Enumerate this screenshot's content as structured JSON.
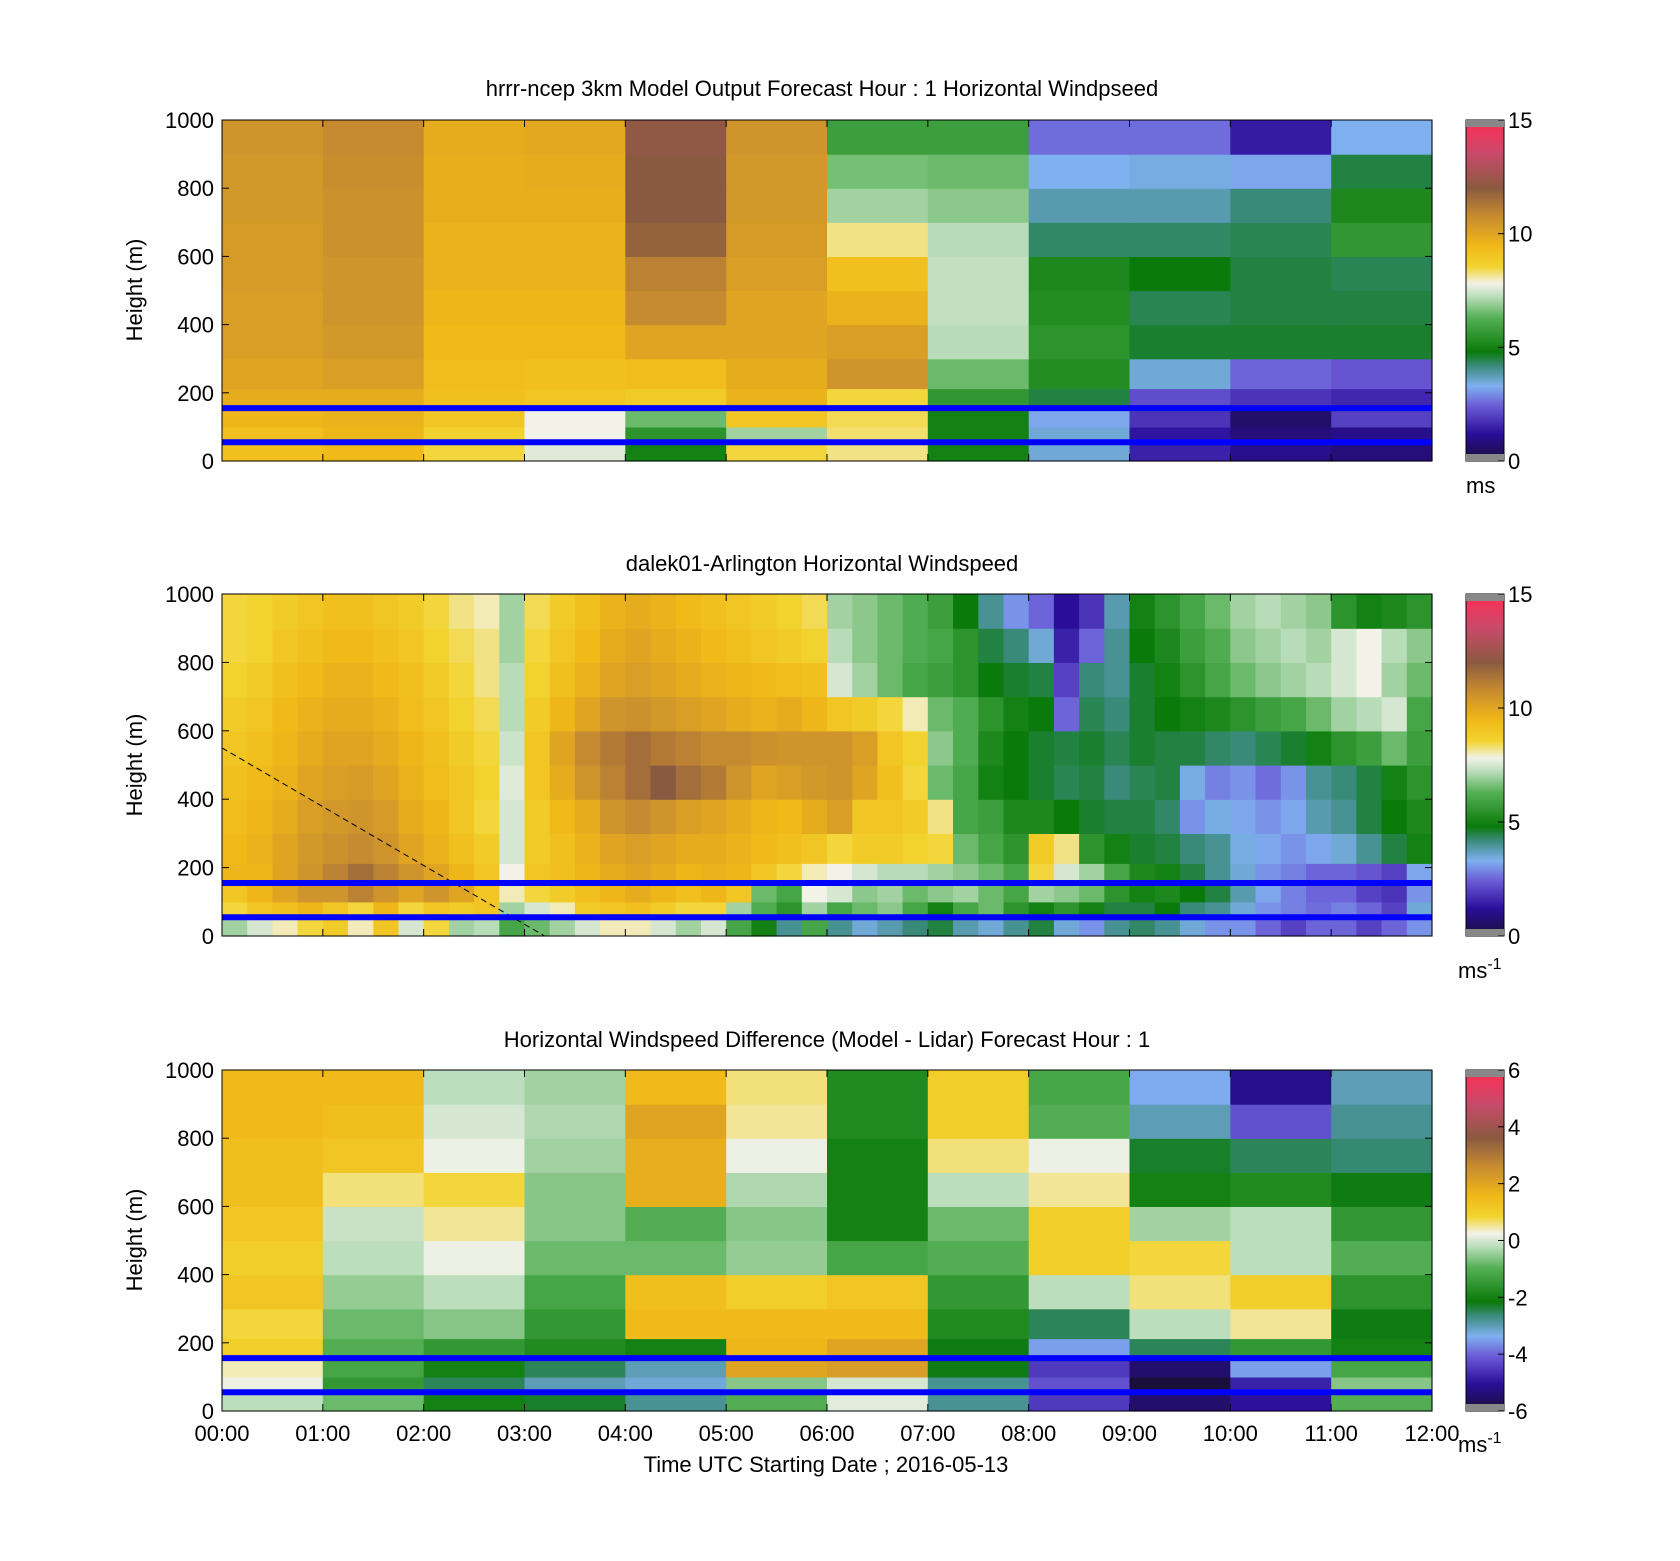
{
  "figure": {
    "xlabel": "Time UTC  Starting Date ; 2016-05-13",
    "x_tick_labels": [
      "00:00",
      "01:00",
      "02:00",
      "03:00",
      "04:00",
      "05:00",
      "06:00",
      "07:00",
      "08:00",
      "09:00",
      "10:00",
      "11:00",
      "12:00"
    ]
  },
  "panels": [
    {
      "title": "hrrr-ncep 3km Model Output   Forecast Hour : 1 Horizontal Windpseed",
      "ylabel": "Height (m)",
      "colorbar_unit": "ms",
      "colorbar_sup": ""
    },
    {
      "title": "dalek01-Arlington  Horizontal Windspeed",
      "ylabel": "Height (m)",
      "colorbar_unit": "ms",
      "colorbar_sup": "-1"
    },
    {
      "title": "Horizontal Windspeed Difference (Model - Lidar) Forecast Hour : 1",
      "ylabel": "Height (m)",
      "colorbar_unit": "ms",
      "colorbar_sup": "-1"
    }
  ],
  "chart_data": [
    {
      "type": "heatmap",
      "title": "hrrr-ncep 3km Model Output   Forecast Hour : 1 Horizontal Windpseed",
      "xlabel": "",
      "ylabel": "Height (m)",
      "xlim": [
        0,
        12
      ],
      "ylim": [
        0,
        1000
      ],
      "y_ticks": [
        0,
        200,
        400,
        600,
        800,
        1000
      ],
      "colorbar_range": [
        0,
        15
      ],
      "colorbar_ticks": [
        0,
        5,
        10,
        15
      ],
      "colorbar_unit": "ms",
      "hlines_m": [
        55,
        155
      ],
      "x_hours": [
        0.5,
        1.5,
        2.5,
        3.5,
        4.5,
        5.5,
        6.5,
        7.5,
        8.5,
        9.5,
        10.5,
        11.5
      ],
      "heights_m": [
        25,
        75,
        125,
        175,
        250,
        350,
        450,
        550,
        650,
        750,
        850,
        950
      ],
      "values": [
        [
          9.2,
          9.4,
          8.5,
          7.6,
          5.0,
          8.5,
          8.2,
          5.0,
          3.5,
          1.5,
          1.0,
          0.8
        ],
        [
          9.2,
          9.5,
          8.6,
          7.8,
          5.5,
          7.0,
          8.3,
          5.0,
          3.5,
          1.3,
          0.8,
          1.0
        ],
        [
          9.5,
          9.6,
          9.0,
          7.8,
          6.5,
          9.0,
          8.4,
          5.0,
          3.2,
          1.8,
          0.6,
          2.0
        ],
        [
          9.8,
          9.8,
          9.2,
          9.0,
          8.8,
          9.6,
          8.5,
          5.6,
          4.5,
          2.2,
          1.8,
          1.6
        ],
        [
          10.0,
          10.2,
          9.3,
          9.2,
          9.3,
          9.8,
          10.5,
          6.5,
          5.3,
          3.5,
          2.5,
          2.3
        ],
        [
          10.2,
          10.4,
          9.4,
          9.4,
          10.0,
          10.0,
          10.2,
          7.2,
          5.5,
          4.6,
          4.6,
          4.6
        ],
        [
          10.2,
          10.5,
          9.5,
          9.5,
          10.8,
          10.0,
          9.6,
          7.3,
          5.3,
          4.4,
          4.5,
          4.5
        ],
        [
          10.3,
          10.5,
          9.6,
          9.6,
          11.0,
          10.2,
          9.2,
          7.3,
          5.2,
          4.8,
          4.5,
          4.4
        ],
        [
          10.3,
          10.6,
          9.6,
          9.6,
          11.8,
          10.3,
          8.2,
          7.2,
          4.3,
          4.3,
          4.4,
          5.6
        ],
        [
          10.4,
          10.6,
          9.7,
          9.7,
          12.0,
          10.4,
          7.0,
          6.8,
          3.8,
          3.8,
          4.2,
          5.2
        ],
        [
          10.4,
          10.7,
          9.7,
          9.8,
          12.0,
          10.4,
          6.6,
          6.5,
          3.3,
          3.4,
          3.2,
          4.5
        ],
        [
          10.5,
          10.8,
          9.8,
          9.9,
          12.2,
          10.5,
          5.8,
          5.8,
          2.6,
          2.6,
          1.4,
          3.3
        ]
      ]
    },
    {
      "type": "heatmap",
      "title": "dalek01-Arlington  Horizontal Windspeed",
      "xlabel": "",
      "ylabel": "Height (m)",
      "xlim": [
        0,
        12
      ],
      "ylim": [
        0,
        1000
      ],
      "y_ticks": [
        0,
        200,
        400,
        600,
        800,
        1000
      ],
      "colorbar_range": [
        0,
        15
      ],
      "colorbar_ticks": [
        0,
        5,
        10,
        15
      ],
      "colorbar_unit": "ms-1",
      "hlines_m": [
        55,
        155
      ],
      "dashed_line": [
        [
          0,
          550
        ],
        [
          3.2,
          0
        ]
      ],
      "x_hours": [
        0.125,
        0.375,
        0.625,
        0.875,
        1.125,
        1.375,
        1.625,
        1.875,
        2.125,
        2.375,
        2.625,
        2.875,
        3.125,
        3.375,
        3.625,
        3.875,
        4.125,
        4.375,
        4.625,
        4.875,
        5.125,
        5.375,
        5.625,
        5.875,
        6.125,
        6.375,
        6.625,
        6.875,
        7.125,
        7.375,
        7.625,
        7.875,
        8.125,
        8.375,
        8.625,
        8.875,
        9.125,
        9.375,
        9.625,
        9.875,
        10.125,
        10.375,
        10.625,
        10.875,
        11.125,
        11.375,
        11.625,
        11.875
      ],
      "heights_m": [
        25,
        75,
        125,
        175,
        250,
        350,
        450,
        550,
        650,
        750,
        850,
        950
      ],
      "values": [
        [
          7.0,
          7.5,
          8.0,
          8.5,
          8.8,
          8.0,
          9.0,
          7.5,
          8.5,
          7.0,
          7.2,
          6.0,
          6.5,
          7.0,
          7.5,
          8.0,
          8.0,
          7.5,
          7.0,
          7.5,
          6.0,
          5.0,
          4.0,
          6.0,
          4.0,
          3.5,
          3.8,
          4.2,
          4.5,
          3.8,
          3.5,
          4.0,
          4.5,
          3.5,
          3.0,
          4.0,
          4.3,
          4.0,
          3.5,
          3.0,
          3.0,
          2.5,
          2.0,
          2.5,
          2.5,
          2.0,
          2.5,
          3.0
        ],
        [
          8.5,
          9.0,
          9.2,
          9.5,
          9.0,
          8.5,
          9.5,
          8.5,
          9.0,
          8.8,
          9.0,
          7.0,
          7.5,
          8.0,
          8.8,
          9.0,
          9.2,
          8.8,
          8.5,
          8.5,
          7.0,
          6.2,
          5.5,
          7.0,
          6.0,
          6.5,
          6.8,
          6.0,
          5.0,
          6.0,
          6.5,
          5.5,
          5.0,
          5.5,
          5.0,
          4.5,
          4.5,
          4.8,
          4.2,
          4.0,
          3.5,
          3.0,
          2.8,
          2.6,
          2.8,
          2.5,
          2.0,
          3.5
        ],
        [
          9.0,
          9.5,
          10.0,
          10.5,
          10.5,
          11.0,
          10.5,
          10.0,
          10.5,
          10.0,
          9.0,
          8.0,
          8.5,
          8.8,
          9.2,
          9.5,
          9.8,
          9.5,
          9.2,
          9.5,
          9.0,
          6.5,
          6.0,
          7.8,
          7.5,
          6.8,
          7.0,
          6.5,
          6.8,
          7.0,
          6.5,
          6.0,
          7.0,
          6.8,
          6.5,
          5.5,
          5.0,
          5.2,
          4.8,
          4.5,
          3.8,
          3.2,
          2.8,
          2.5,
          2.5,
          2.0,
          1.8,
          3.0
        ],
        [
          9.5,
          9.5,
          10.0,
          10.5,
          11.0,
          11.5,
          11.0,
          10.5,
          10.0,
          9.5,
          9.0,
          7.8,
          9.0,
          9.2,
          9.5,
          9.8,
          10.0,
          9.8,
          9.5,
          9.6,
          9.5,
          9.0,
          8.5,
          8.0,
          7.8,
          7.5,
          7.2,
          7.2,
          7.0,
          6.8,
          6.5,
          6.0,
          8.5,
          7.5,
          7.0,
          6.0,
          5.2,
          5.0,
          4.5,
          4.0,
          3.5,
          3.0,
          2.8,
          2.5,
          2.5,
          2.3,
          2.0,
          3.2
        ],
        [
          9.4,
          9.6,
          10.0,
          10.4,
          10.6,
          10.8,
          10.5,
          10.0,
          9.6,
          9.2,
          8.8,
          7.5,
          8.8,
          9.2,
          9.6,
          10.0,
          10.2,
          10.0,
          9.8,
          9.8,
          9.6,
          9.4,
          9.2,
          9.0,
          8.5,
          8.8,
          8.8,
          8.6,
          8.5,
          6.5,
          6.0,
          5.5,
          8.8,
          8.2,
          5.5,
          5.0,
          4.6,
          4.5,
          4.2,
          4.0,
          3.4,
          3.2,
          3.0,
          3.2,
          3.5,
          4.0,
          4.5,
          5.0
        ],
        [
          9.3,
          9.5,
          9.8,
          10.2,
          10.4,
          10.5,
          10.3,
          9.8,
          9.5,
          9.0,
          8.5,
          7.5,
          8.8,
          9.4,
          9.8,
          10.5,
          10.8,
          10.5,
          10.2,
          10.0,
          9.8,
          9.5,
          9.4,
          9.8,
          10.2,
          9.0,
          9.0,
          8.8,
          8.2,
          6.0,
          5.8,
          5.2,
          5.2,
          4.8,
          4.6,
          4.5,
          4.5,
          4.3,
          3.0,
          3.4,
          3.2,
          3.0,
          3.2,
          3.8,
          4.0,
          4.5,
          4.8,
          5.2
        ],
        [
          9.2,
          9.4,
          9.6,
          10.0,
          10.2,
          10.3,
          10.0,
          9.6,
          9.3,
          9.0,
          8.6,
          7.6,
          9.0,
          9.8,
          10.5,
          11.0,
          11.5,
          12.0,
          11.5,
          11.2,
          10.5,
          10.0,
          10.2,
          10.4,
          10.5,
          10.0,
          9.2,
          8.5,
          6.5,
          6.0,
          5.0,
          4.8,
          4.6,
          4.4,
          4.5,
          4.2,
          4.4,
          4.5,
          3.4,
          2.8,
          3.0,
          2.6,
          3.0,
          4.0,
          4.2,
          4.5,
          5.0,
          5.5
        ],
        [
          9.0,
          9.2,
          9.5,
          9.8,
          10.0,
          10.0,
          9.8,
          9.5,
          9.2,
          8.8,
          8.5,
          7.4,
          9.0,
          10.0,
          10.8,
          11.2,
          11.5,
          11.2,
          11.0,
          10.8,
          10.8,
          10.6,
          10.5,
          10.5,
          10.5,
          10.2,
          9.0,
          8.6,
          6.8,
          6.2,
          5.2,
          4.8,
          4.6,
          4.5,
          4.6,
          4.4,
          4.6,
          4.5,
          4.5,
          4.3,
          4.2,
          4.4,
          4.6,
          5.0,
          5.5,
          5.8,
          6.5,
          5.8
        ],
        [
          8.8,
          9.0,
          9.4,
          9.6,
          9.8,
          9.8,
          9.6,
          9.3,
          9.0,
          8.6,
          8.4,
          7.2,
          8.8,
          9.5,
          10.0,
          10.5,
          10.6,
          10.4,
          10.2,
          10.0,
          9.8,
          9.6,
          9.8,
          9.5,
          9.0,
          8.8,
          8.5,
          8.0,
          6.5,
          6.2,
          5.5,
          5.0,
          4.8,
          2.5,
          4.4,
          4.2,
          4.6,
          4.8,
          5.0,
          5.2,
          5.5,
          5.8,
          6.0,
          6.5,
          7.0,
          7.2,
          7.5,
          6.0
        ],
        [
          8.6,
          8.8,
          9.2,
          9.4,
          9.6,
          9.6,
          9.4,
          9.2,
          8.8,
          8.5,
          8.2,
          7.2,
          8.6,
          9.2,
          9.6,
          10.0,
          10.2,
          10.0,
          9.8,
          9.6,
          9.5,
          9.4,
          9.3,
          9.2,
          7.5,
          7.0,
          6.5,
          6.0,
          5.8,
          5.5,
          4.8,
          4.6,
          4.5,
          2.0,
          4.2,
          4.0,
          4.6,
          5.0,
          5.5,
          6.0,
          6.5,
          6.8,
          7.0,
          7.2,
          7.5,
          7.8,
          7.0,
          6.5
        ],
        [
          8.5,
          8.6,
          9.0,
          9.2,
          9.4,
          9.4,
          9.2,
          9.0,
          8.6,
          8.4,
          8.2,
          7.0,
          8.5,
          9.0,
          9.4,
          9.8,
          10.0,
          9.8,
          9.6,
          9.4,
          9.2,
          9.0,
          8.8,
          8.6,
          7.2,
          6.8,
          6.5,
          6.2,
          6.0,
          5.5,
          4.5,
          4.2,
          3.5,
          1.5,
          2.5,
          4.0,
          4.8,
          5.2,
          5.8,
          6.2,
          6.8,
          7.0,
          7.2,
          7.0,
          7.5,
          7.8,
          7.2,
          6.8
        ],
        [
          8.5,
          8.6,
          8.8,
          9.0,
          9.2,
          9.2,
          9.0,
          8.8,
          8.5,
          8.2,
          8.0,
          7.0,
          8.4,
          8.8,
          9.2,
          9.6,
          9.8,
          9.6,
          9.4,
          9.2,
          9.0,
          8.8,
          8.6,
          8.4,
          7.0,
          6.8,
          6.5,
          6.2,
          5.8,
          4.8,
          4.0,
          3.0,
          2.5,
          1.2,
          1.8,
          3.8,
          5.0,
          5.5,
          6.0,
          6.5,
          7.0,
          7.2,
          7.0,
          6.8,
          5.5,
          5.0,
          5.2,
          5.5
        ]
      ]
    },
    {
      "type": "heatmap",
      "title": "Horizontal Windspeed Difference (Model - Lidar) Forecast Hour : 1",
      "xlabel": "Time UTC  Starting Date ; 2016-05-13",
      "ylabel": "Height (m)",
      "xlim": [
        0,
        12
      ],
      "ylim": [
        0,
        1000
      ],
      "y_ticks": [
        0,
        200,
        400,
        600,
        800,
        1000
      ],
      "colorbar_range": [
        -6,
        6
      ],
      "colorbar_ticks": [
        -6,
        -4,
        -2,
        0,
        2,
        4,
        6
      ],
      "colorbar_unit": "ms-1",
      "hlines_m": [
        55,
        155
      ],
      "x_hours": [
        0.5,
        1.5,
        2.5,
        3.5,
        4.5,
        5.5,
        6.5,
        7.5,
        8.5,
        9.5,
        10.5,
        11.5
      ],
      "heights_m": [
        25,
        75,
        125,
        175,
        250,
        350,
        450,
        550,
        650,
        750,
        850,
        950
      ],
      "values": [
        [
          -0.2,
          -0.8,
          -2.0,
          -2.3,
          -2.8,
          -1.0,
          0.1,
          -2.8,
          -4.5,
          -5.5,
          -5.0,
          -1.0
        ],
        [
          0.2,
          -1.5,
          -2.5,
          -3.0,
          -3.2,
          -0.6,
          0.0,
          -2.8,
          -4.2,
          -6.0,
          -4.8,
          -0.6
        ],
        [
          0.4,
          -1.2,
          -2.0,
          -2.5,
          -3.0,
          2.0,
          2.2,
          -2.2,
          -4.5,
          -5.5,
          -3.5,
          -1.2
        ],
        [
          1.0,
          -1.0,
          -1.5,
          -1.8,
          -2.0,
          1.6,
          2.0,
          -2.2,
          -3.5,
          -2.5,
          -1.5,
          -2.0
        ],
        [
          0.8,
          -0.8,
          -0.6,
          -1.5,
          1.5,
          1.5,
          1.5,
          -1.8,
          -2.5,
          -0.2,
          0.5,
          -2.2
        ],
        [
          1.2,
          -0.5,
          -0.2,
          -1.2,
          1.4,
          1.0,
          1.2,
          -1.5,
          -0.2,
          0.6,
          1.0,
          -1.6
        ],
        [
          1.0,
          -0.2,
          0.2,
          -0.8,
          -0.8,
          -0.5,
          -1.2,
          -1.0,
          1.0,
          0.8,
          -0.2,
          -1.0
        ],
        [
          1.2,
          -0.1,
          0.5,
          -0.6,
          -1.0,
          -0.6,
          -2.0,
          -0.8,
          1.0,
          -0.4,
          -0.2,
          -1.5
        ],
        [
          1.4,
          0.6,
          0.8,
          -0.6,
          1.8,
          -0.3,
          -2.0,
          -0.2,
          0.5,
          -2.0,
          -1.8,
          -2.2
        ],
        [
          1.4,
          1.2,
          0.2,
          -0.4,
          1.8,
          0.2,
          -2.0,
          0.6,
          0.2,
          -2.3,
          -2.5,
          -2.6
        ],
        [
          1.5,
          1.4,
          0.0,
          -0.3,
          2.0,
          0.5,
          -1.8,
          1.0,
          -1.0,
          -3.0,
          -4.2,
          -2.8
        ],
        [
          1.5,
          1.5,
          -0.2,
          -0.4,
          1.5,
          0.6,
          -1.8,
          1.0,
          -1.2,
          -3.4,
          -5.2,
          -3.0
        ]
      ]
    }
  ]
}
